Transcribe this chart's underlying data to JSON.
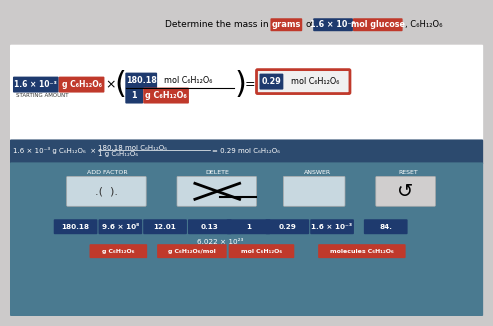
{
  "bg_color": "#cccaca",
  "dark_blue": "#1e3a6e",
  "red": "#c0392b",
  "btn_color": "#1e3a6e",
  "teal_bg": "#3a7a8a",
  "bottom_bg": "#2c5f7a",
  "eq_band": "#2c4a6e",
  "title_text": "Determine the mass in",
  "grams_label": "grams",
  "of_text": "of",
  "val_box": "1.6 × 10⁻³",
  "mol_glucose": "mol glucose",
  "formula_title": ", C₆H₁₂O₆",
  "sa_val": "1.6 × 10⁻³",
  "sa_unit": "g C₆H₁₂O₆",
  "times": "×",
  "frac_top_num": "180.18",
  "frac_top_unit": "mol C₆H₁₂O₆",
  "frac_bot_num": "1",
  "frac_bot_unit": "g C₆H₁₂O₆",
  "result_num": "0.29",
  "result_unit": "mol C₆H₁₂O₆",
  "eq_line1a": "1.6 × 10⁻³ g C₆H₁₂O₆  ×",
  "eq_line1b": "180.18 mol C₆H₁₂O₆",
  "eq_line1c": "= 0.29 mol C₆H₁₂O₆",
  "eq_line2": "1 g C₆H₁₂O₆",
  "section_labels": [
    "ADD FACTOR",
    "DELETE",
    "ANSWER",
    "RESET"
  ],
  "btn_labels": [
    "180.18",
    "9.6 × 10⁸",
    "12.01",
    "0.13",
    "1",
    "0.29",
    "1.6 × 10⁻³",
    "84."
  ],
  "mid_label": "6.022 × 10²³",
  "unit_labels": [
    "g C₆H₁₂O₆",
    "g C₆H₁₂O₆/mol",
    "mol C₆H₁₂O₆",
    "molecules C₆H₁₂O₆"
  ]
}
